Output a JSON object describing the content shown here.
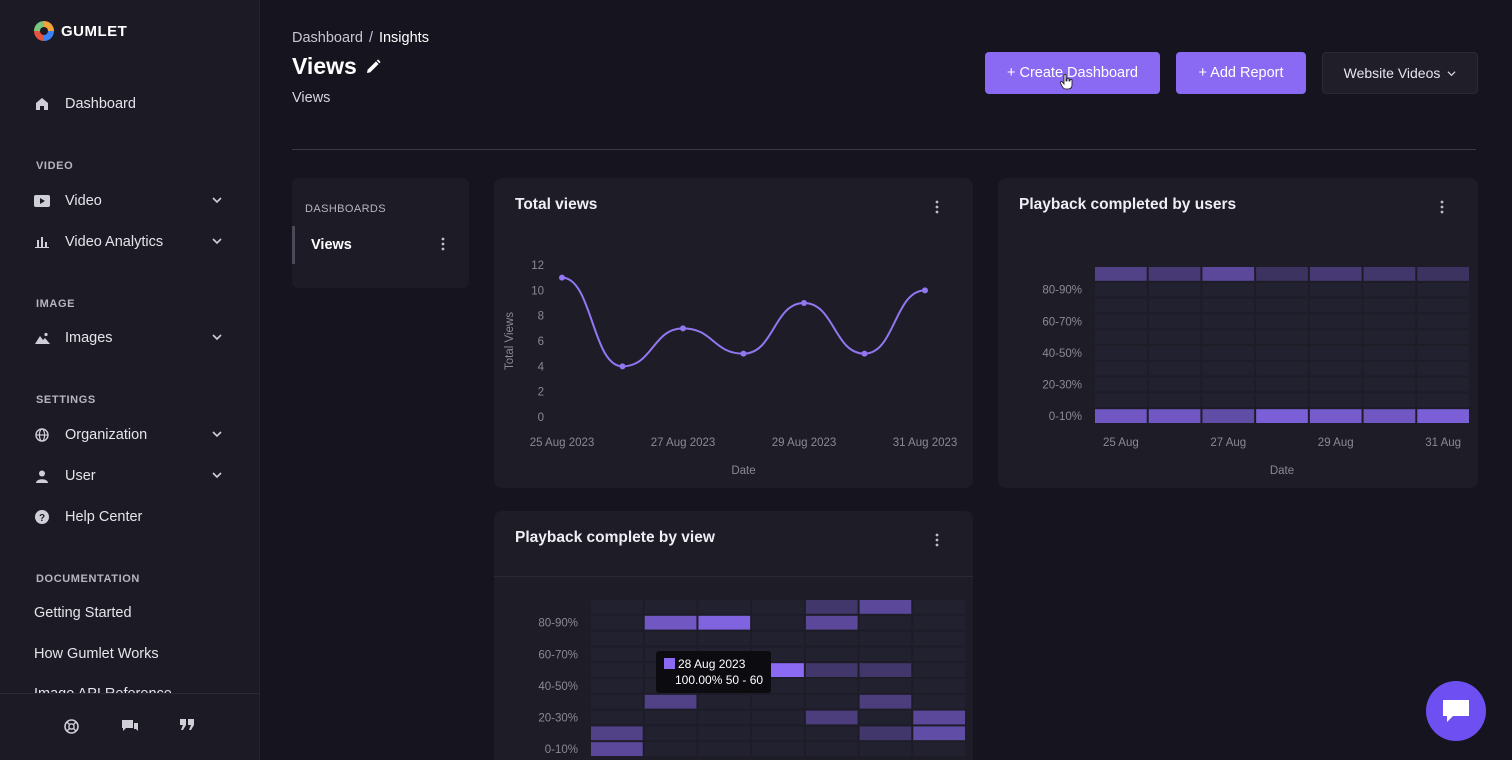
{
  "brand": {
    "name": "GUMLET"
  },
  "sidebar": {
    "dashboard": {
      "label": "Dashboard",
      "icon": "home-icon"
    },
    "sections": {
      "video": "VIDEO",
      "image": "IMAGE",
      "settings": "SETTINGS",
      "documentation": "DOCUMENTATION"
    },
    "items": {
      "video": {
        "label": "Video",
        "icon": "video-icon"
      },
      "video_analytics": {
        "label": "Video Analytics",
        "icon": "bar-chart-icon"
      },
      "images": {
        "label": "Images",
        "icon": "image-icon"
      },
      "organization": {
        "label": "Organization",
        "icon": "globe-icon"
      },
      "user": {
        "label": "User",
        "icon": "user-icon"
      },
      "help_center": {
        "label": "Help Center",
        "icon": "help-icon"
      }
    },
    "docs": [
      "Getting Started",
      "How Gumlet Works",
      "Image API Reference"
    ],
    "footer_icons": [
      "support-icon",
      "chat-icon",
      "quote-icon"
    ]
  },
  "header": {
    "breadcrumb": {
      "parent": "Dashboard",
      "separator": "/",
      "current": "Insights"
    },
    "title": "Views",
    "subtitle": "Views",
    "create_dashboard": "+ Create Dashboard",
    "add_report": "+ Add Report",
    "source_select": "Website Videos"
  },
  "dashboards_panel": {
    "label": "DASHBOARDS",
    "items": [
      "Views"
    ]
  },
  "colors": {
    "accent": "#8b6af3",
    "background": "#15141f",
    "card": "#1d1c27",
    "line": "#9277f0"
  },
  "cards": {
    "total_views": {
      "title": "Total views"
    },
    "playback_users": {
      "title": "Playback completed by users"
    },
    "playback_view": {
      "title": "Playback complete by view"
    }
  },
  "tooltip": {
    "date": "28 Aug 2023",
    "value": "100.00% 50 - 60"
  },
  "chart_data": [
    {
      "type": "line",
      "title": "Total views",
      "xlabel": "Date",
      "ylabel": "Total Views",
      "x": [
        "25 Aug 2023",
        "26 Aug 2023",
        "27 Aug 2023",
        "28 Aug 2023",
        "29 Aug 2023",
        "30 Aug 2023",
        "31 Aug 2023"
      ],
      "x_tick_labels": [
        "25 Aug 2023",
        "27 Aug 2023",
        "29 Aug 2023",
        "31 Aug 2023"
      ],
      "values": [
        11,
        4,
        7,
        5,
        9,
        5,
        10
      ],
      "yticks": [
        0,
        2,
        4,
        6,
        8,
        10,
        12
      ],
      "ylim": [
        0,
        12
      ],
      "grid": false
    },
    {
      "type": "heatmap",
      "title": "Playback completed by users",
      "xlabel": "Date",
      "x": [
        "25 Aug",
        "26 Aug",
        "27 Aug",
        "28 Aug",
        "29 Aug",
        "30 Aug",
        "31 Aug"
      ],
      "x_tick_labels": [
        "25 Aug",
        "27 Aug",
        "29 Aug",
        "31 Aug"
      ],
      "y": [
        "0-10%",
        "10-20%",
        "20-30%",
        "30-40%",
        "40-50%",
        "50-60%",
        "60-70%",
        "70-80%",
        "80-90%",
        "90-100%"
      ],
      "y_tick_labels": [
        "0-10%",
        "20-30%",
        "40-50%",
        "60-70%",
        "80-90%"
      ],
      "cells": [
        {
          "x": "25 Aug",
          "y": "0-10%",
          "intensity": 0.75
        },
        {
          "x": "26 Aug",
          "y": "0-10%",
          "intensity": 0.75
        },
        {
          "x": "27 Aug",
          "y": "0-10%",
          "intensity": 0.6
        },
        {
          "x": "28 Aug",
          "y": "0-10%",
          "intensity": 0.85
        },
        {
          "x": "29 Aug",
          "y": "0-10%",
          "intensity": 0.8
        },
        {
          "x": "30 Aug",
          "y": "0-10%",
          "intensity": 0.75
        },
        {
          "x": "31 Aug",
          "y": "0-10%",
          "intensity": 0.85
        },
        {
          "x": "25 Aug",
          "y": "90-100%",
          "intensity": 0.45
        },
        {
          "x": "26 Aug",
          "y": "90-100%",
          "intensity": 0.35
        },
        {
          "x": "27 Aug",
          "y": "90-100%",
          "intensity": 0.55
        },
        {
          "x": "28 Aug",
          "y": "90-100%",
          "intensity": 0.25
        },
        {
          "x": "29 Aug",
          "y": "90-100%",
          "intensity": 0.35
        },
        {
          "x": "30 Aug",
          "y": "90-100%",
          "intensity": 0.3
        },
        {
          "x": "31 Aug",
          "y": "90-100%",
          "intensity": 0.25
        }
      ]
    },
    {
      "type": "heatmap",
      "title": "Playback complete by view",
      "x": [
        "25 Aug",
        "26 Aug",
        "27 Aug",
        "28 Aug",
        "29 Aug",
        "30 Aug",
        "31 Aug"
      ],
      "y": [
        "0-10%",
        "10-20%",
        "20-30%",
        "30-40%",
        "40-50%",
        "50-60%",
        "60-70%",
        "70-80%",
        "80-90%",
        "90-100%"
      ],
      "y_tick_labels": [
        "0-10%",
        "20-30%",
        "40-50%",
        "60-70%",
        "80-90%"
      ],
      "cells": [
        {
          "x": "25 Aug",
          "y": "0-10%",
          "intensity": 0.55
        },
        {
          "x": "25 Aug",
          "y": "10-20%",
          "intensity": 0.45
        },
        {
          "x": "26 Aug",
          "y": "30-40%",
          "intensity": 0.45
        },
        {
          "x": "26 Aug",
          "y": "80-90%",
          "intensity": 0.75
        },
        {
          "x": "27 Aug",
          "y": "80-90%",
          "intensity": 0.9
        },
        {
          "x": "28 Aug",
          "y": "50-60%",
          "intensity": 1.0
        },
        {
          "x": "29 Aug",
          "y": "20-30%",
          "intensity": 0.4
        },
        {
          "x": "29 Aug",
          "y": "50-60%",
          "intensity": 0.3
        },
        {
          "x": "29 Aug",
          "y": "80-90%",
          "intensity": 0.55
        },
        {
          "x": "29 Aug",
          "y": "90-100%",
          "intensity": 0.3
        },
        {
          "x": "30 Aug",
          "y": "10-20%",
          "intensity": 0.3
        },
        {
          "x": "30 Aug",
          "y": "30-40%",
          "intensity": 0.4
        },
        {
          "x": "30 Aug",
          "y": "50-60%",
          "intensity": 0.3
        },
        {
          "x": "30 Aug",
          "y": "90-100%",
          "intensity": 0.55
        },
        {
          "x": "31 Aug",
          "y": "10-20%",
          "intensity": 0.6
        },
        {
          "x": "31 Aug",
          "y": "20-30%",
          "intensity": 0.55
        }
      ]
    }
  ]
}
